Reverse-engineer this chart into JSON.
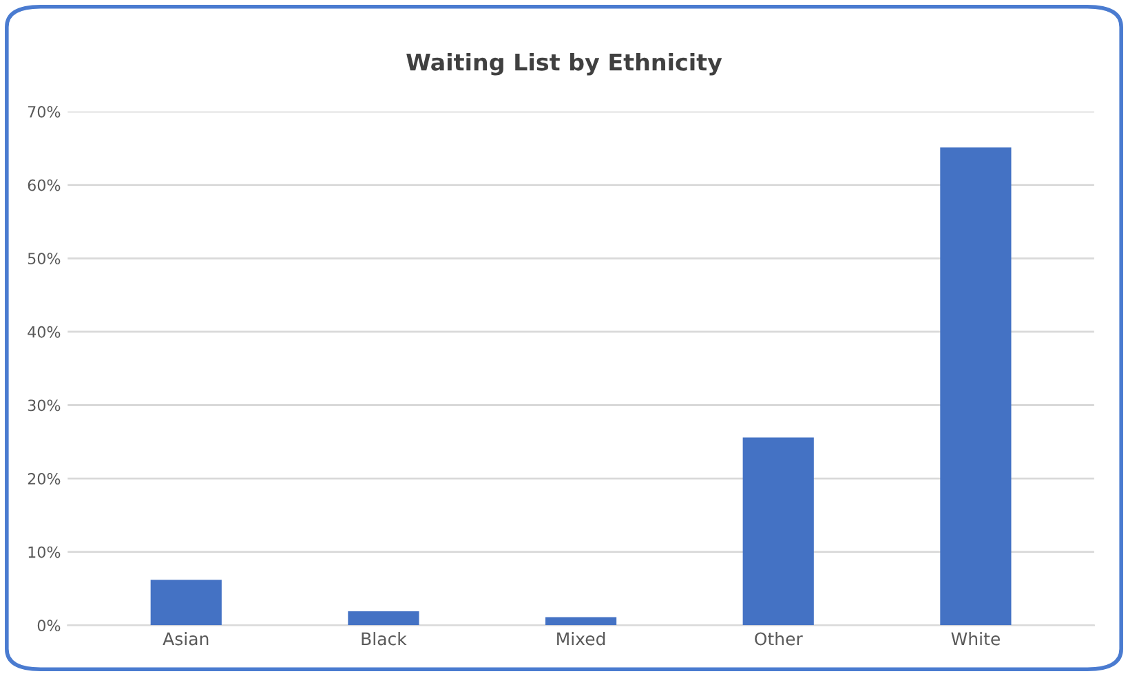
{
  "chart_data": {
    "type": "bar",
    "title": "Waiting List by Ethnicity",
    "categories": [
      "Asian",
      "Black",
      "Mixed",
      "Other",
      "White"
    ],
    "values": [
      6.2,
      1.9,
      1.1,
      25.6,
      65.1
    ],
    "color": "#4472c4",
    "ylim": [
      0,
      70
    ],
    "yticks": [
      {
        "value": 0,
        "label": "0%"
      },
      {
        "value": 10,
        "label": "10%"
      },
      {
        "value": 20,
        "label": "20%"
      },
      {
        "value": 30,
        "label": "30%"
      },
      {
        "value": 40,
        "label": "40%"
      },
      {
        "value": 50,
        "label": "50%"
      },
      {
        "value": 60,
        "label": "60%"
      },
      {
        "value": 70,
        "label": "70%"
      }
    ],
    "grid": "y",
    "legend": false
  }
}
